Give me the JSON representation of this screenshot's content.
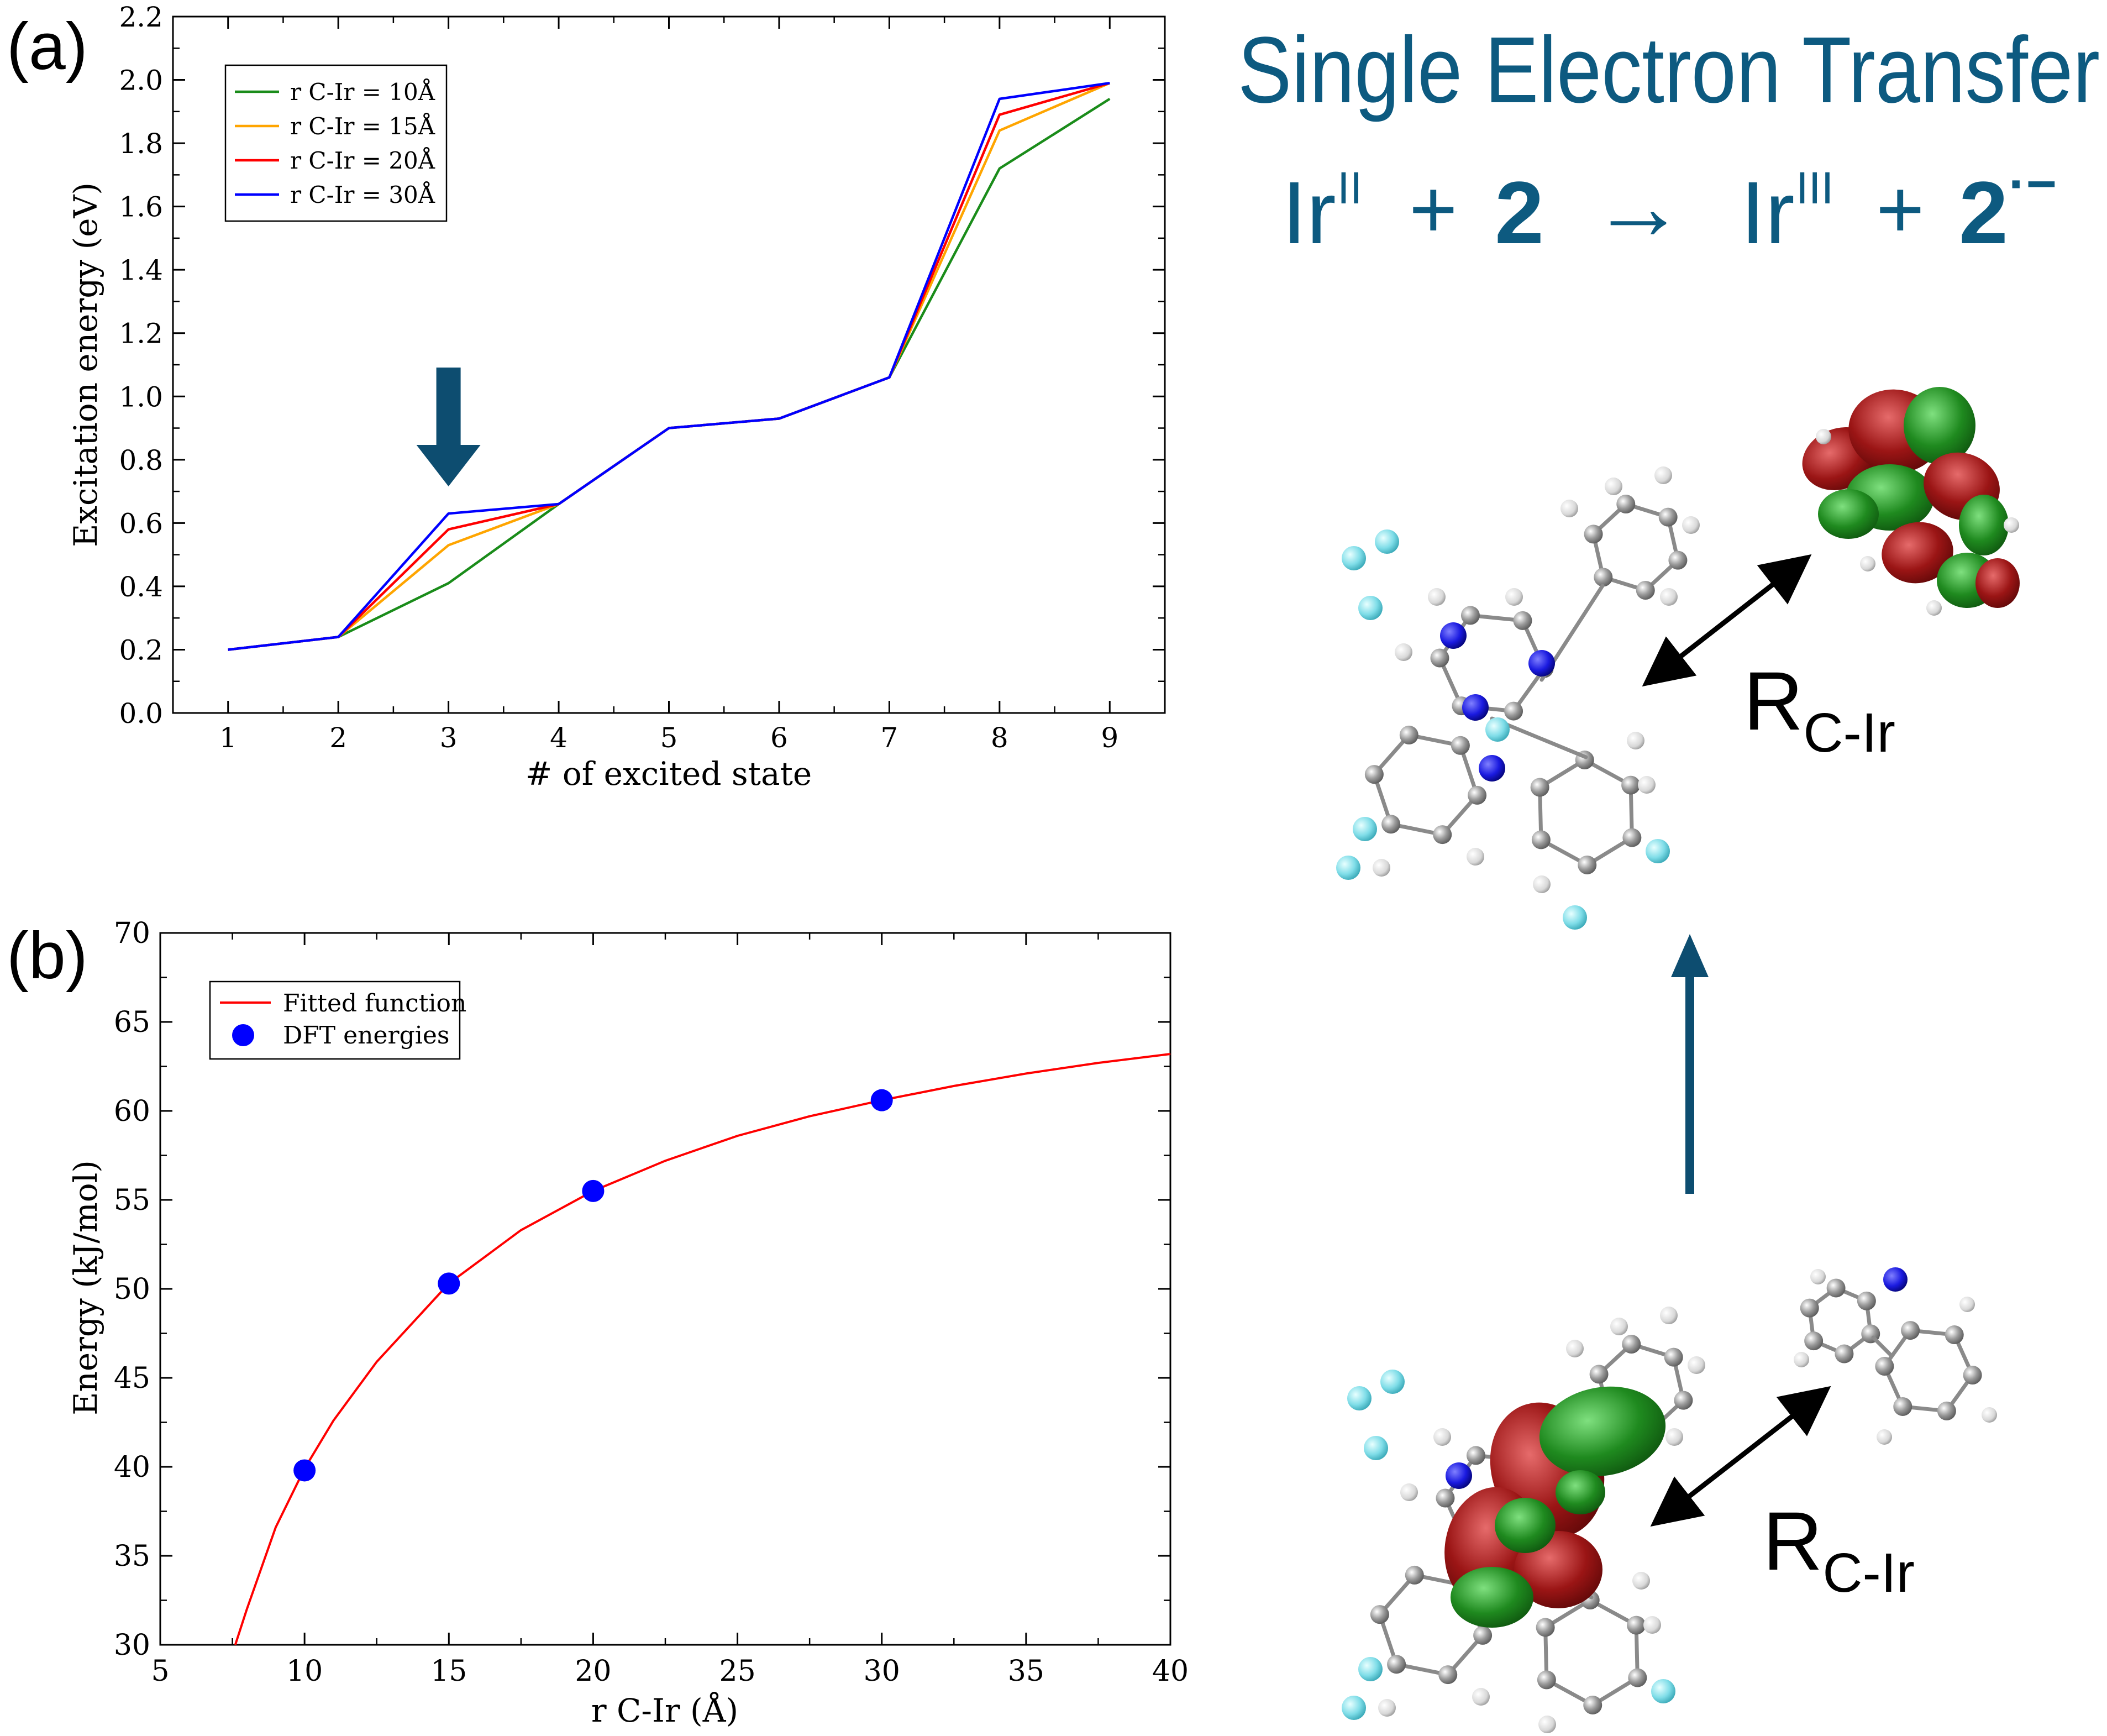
{
  "panel_labels": {
    "a": "(a)",
    "b": "(b)"
  },
  "header": {
    "title": "Single Electron Transfer",
    "eq_ir": "Ir",
    "eq_ox_ii": "II",
    "eq_plus": "+",
    "eq_two": "2",
    "eq_arrow": "→",
    "eq_ox_iii": "III",
    "eq_charge": "·−"
  },
  "distance_label": {
    "main": "R",
    "sub": "C-Ir"
  },
  "colors": {
    "title": "#0d5a80",
    "arrow": "#0d4d70",
    "s10": "#1a8c1a",
    "s15": "#ffa500",
    "s20": "#ff0000",
    "s30": "#0000ff",
    "fit": "#ff0000",
    "dft": "#0000ff"
  },
  "chart_data": [
    {
      "type": "line",
      "title": "",
      "xlabel": "# of excited state",
      "ylabel": "Excitation energy (eV)",
      "xlim": [
        0.5,
        9.5
      ],
      "ylim": [
        0.0,
        2.2
      ],
      "x": [
        1,
        2,
        3,
        4,
        5,
        6,
        7,
        8,
        9
      ],
      "x_ticks": [
        "1",
        "2",
        "3",
        "4",
        "5",
        "6",
        "7",
        "8",
        "9"
      ],
      "y_ticks": [
        "0.0",
        "0.2",
        "0.4",
        "0.6",
        "0.8",
        "1.0",
        "1.2",
        "1.4",
        "1.6",
        "1.8",
        "2.0",
        "2.2"
      ],
      "legend_position": "top-left",
      "annotation": "arrow pointing at state 3",
      "annotation_x": 3,
      "series": [
        {
          "name": "r C-Ir = 10Å",
          "values": [
            0.2,
            0.24,
            0.41,
            0.66,
            0.9,
            0.93,
            1.06,
            1.72,
            1.94
          ]
        },
        {
          "name": "r C-Ir = 15Å",
          "values": [
            0.2,
            0.24,
            0.53,
            0.66,
            0.9,
            0.93,
            1.06,
            1.84,
            1.99
          ]
        },
        {
          "name": "r C-Ir = 20Å",
          "values": [
            0.2,
            0.24,
            0.58,
            0.66,
            0.9,
            0.93,
            1.06,
            1.89,
            1.99
          ]
        },
        {
          "name": "r C-Ir = 30Å",
          "values": [
            0.2,
            0.24,
            0.63,
            0.66,
            0.9,
            0.93,
            1.06,
            1.94,
            1.99
          ]
        }
      ]
    },
    {
      "type": "scatter",
      "title": "",
      "xlabel": "r C-Ir (Å)",
      "ylabel": "Energy (kJ/mol)",
      "xlim": [
        5,
        40
      ],
      "ylim": [
        30,
        70
      ],
      "x_ticks": [
        "5",
        "10",
        "15",
        "20",
        "25",
        "30",
        "35",
        "40"
      ],
      "y_ticks": [
        "30",
        "35",
        "40",
        "45",
        "50",
        "55",
        "60",
        "65",
        "70"
      ],
      "legend_position": "top-left",
      "series": [
        {
          "name": "Fitted function",
          "kind": "line",
          "x": [
            7.6,
            8,
            9,
            10,
            11,
            12.5,
            15,
            17.5,
            20,
            22.5,
            25,
            27.5,
            30,
            32.5,
            35,
            37.5,
            40
          ],
          "values": [
            30.0,
            32.0,
            36.6,
            39.9,
            42.6,
            45.9,
            50.3,
            53.3,
            55.5,
            57.2,
            58.6,
            59.7,
            60.6,
            61.4,
            62.1,
            62.7,
            63.2
          ]
        },
        {
          "name": "DFT energies",
          "kind": "points",
          "x": [
            10,
            15,
            20,
            30
          ],
          "values": [
            39.8,
            50.3,
            55.5,
            60.6
          ]
        }
      ]
    }
  ]
}
